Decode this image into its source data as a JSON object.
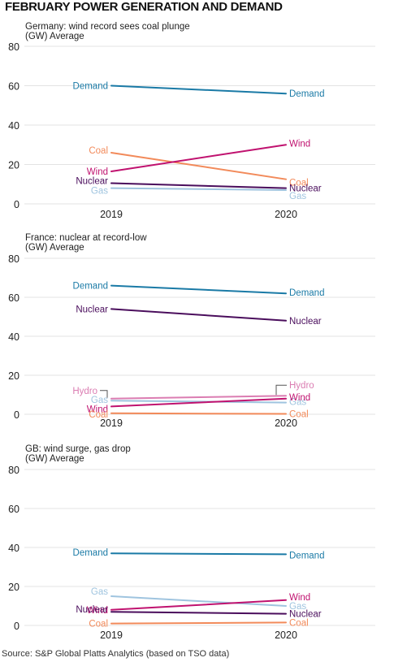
{
  "title": "FEBRUARY POWER GENERATION AND DEMAND",
  "source": "Source: S&P Global Platts Analytics (based on TSO data)",
  "colors": {
    "Demand": "#1a7aa6",
    "Wind": "#c0126f",
    "Coal": "#f28a5a",
    "Nuclear": "#4a0d5c",
    "Gas": "#9fc4df",
    "Hydro": "#db7db2",
    "grid": "#e3e3e3"
  },
  "chart_data": [
    {
      "type": "line",
      "title": "Germany: wind record sees coal plunge",
      "ylabel": "(GW) Average",
      "x": [
        "2019",
        "2020"
      ],
      "ylim": [
        0,
        80
      ],
      "yticks": [
        0,
        20,
        40,
        60,
        80
      ],
      "grid": true,
      "series": [
        {
          "name": "Demand",
          "values": [
            60,
            56
          ]
        },
        {
          "name": "Coal",
          "values": [
            26,
            12.5
          ]
        },
        {
          "name": "Wind",
          "values": [
            16.5,
            30
          ]
        },
        {
          "name": "Nuclear",
          "values": [
            10.5,
            8
          ]
        },
        {
          "name": "Gas",
          "values": [
            8,
            7
          ]
        }
      ]
    },
    {
      "type": "line",
      "title": "France: nuclear at record-low",
      "ylabel": "(GW) Average",
      "x": [
        "2019",
        "2020"
      ],
      "ylim": [
        0,
        80
      ],
      "yticks": [
        0,
        20,
        40,
        60,
        80
      ],
      "grid": true,
      "series": [
        {
          "name": "Demand",
          "values": [
            66,
            62
          ]
        },
        {
          "name": "Nuclear",
          "values": [
            54,
            48
          ]
        },
        {
          "name": "Hydro",
          "values": [
            8,
            9.5
          ]
        },
        {
          "name": "Gas",
          "values": [
            7,
            6
          ]
        },
        {
          "name": "Wind",
          "values": [
            4,
            8
          ]
        },
        {
          "name": "Coal",
          "values": [
            0.5,
            0.2
          ]
        }
      ]
    },
    {
      "type": "line",
      "title": "GB: wind surge, gas drop",
      "ylabel": "(GW) Average",
      "x": [
        "2019",
        "2020"
      ],
      "ylim": [
        0,
        80
      ],
      "yticks": [
        0,
        20,
        40,
        60,
        80
      ],
      "grid": true,
      "series": [
        {
          "name": "Demand",
          "values": [
            37,
            36.5
          ]
        },
        {
          "name": "Gas",
          "values": [
            15,
            10
          ]
        },
        {
          "name": "Wind",
          "values": [
            8,
            13
          ]
        },
        {
          "name": "Nuclear",
          "values": [
            7,
            6
          ]
        },
        {
          "name": "Coal",
          "values": [
            1,
            1.5
          ]
        }
      ]
    }
  ]
}
